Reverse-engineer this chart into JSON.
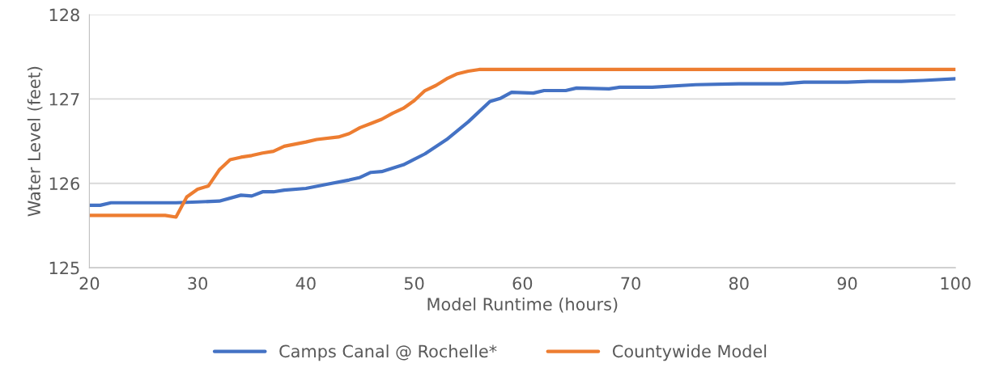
{
  "chart_data": {
    "type": "line",
    "xlabel": "Model Runtime (hours)",
    "ylabel": "Water Level (feet)",
    "xlim": [
      20,
      100
    ],
    "xticks": [
      20,
      30,
      40,
      50,
      60,
      70,
      80,
      90,
      100
    ],
    "ylim": [
      125,
      128
    ],
    "yticks": [
      125,
      126,
      127,
      128
    ],
    "grid": "y",
    "legend": "bottom",
    "marker": "none",
    "line_style": "solid",
    "series": [
      {
        "name": "Camps Canal @ Rochelle*",
        "color": "#4472c4",
        "x": [
          20,
          21,
          22,
          28,
          30,
          32,
          34,
          35,
          36,
          37,
          38,
          40,
          42,
          44,
          45,
          46,
          47,
          49,
          51,
          53,
          55,
          57,
          58,
          59,
          61,
          62,
          64,
          65,
          68,
          69,
          72,
          76,
          80,
          84,
          86,
          90,
          92,
          95,
          97,
          100
        ],
        "values": [
          125.74,
          125.74,
          125.77,
          125.77,
          125.78,
          125.79,
          125.86,
          125.85,
          125.9,
          125.9,
          125.92,
          125.94,
          125.99,
          126.04,
          126.07,
          126.13,
          126.14,
          126.22,
          126.35,
          126.52,
          126.73,
          126.97,
          127.01,
          127.08,
          127.07,
          127.1,
          127.1,
          127.13,
          127.12,
          127.14,
          127.14,
          127.17,
          127.18,
          127.18,
          127.2,
          127.2,
          127.21,
          127.21,
          127.22,
          127.24
        ]
      },
      {
        "name": "Countywide Model",
        "color": "#ed7d31",
        "x": [
          20,
          27,
          28,
          29,
          30,
          31,
          32,
          33,
          34,
          35,
          36,
          37,
          38,
          40,
          41,
          43,
          44,
          45,
          46,
          47,
          48,
          49,
          50,
          51,
          52,
          53,
          54,
          55,
          56,
          100
        ],
        "values": [
          125.62,
          125.62,
          125.6,
          125.84,
          125.93,
          125.97,
          126.16,
          126.28,
          126.31,
          126.33,
          126.36,
          126.38,
          126.44,
          126.49,
          126.52,
          126.55,
          126.59,
          126.66,
          126.71,
          126.76,
          126.83,
          126.89,
          126.98,
          127.1,
          127.16,
          127.24,
          127.3,
          127.33,
          127.35,
          127.35
        ]
      }
    ]
  }
}
